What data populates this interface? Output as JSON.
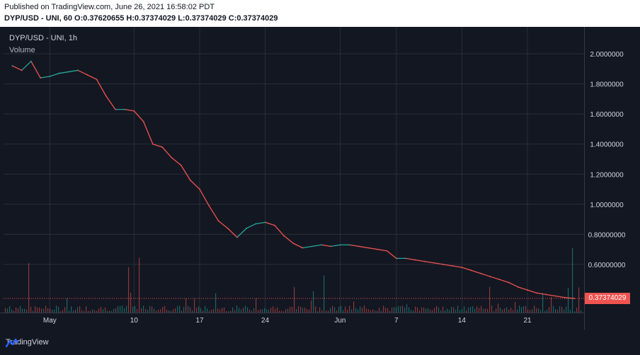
{
  "header": {
    "published": "Published on TradingView.com, June 26, 2021 16:58:02 PDT",
    "symbol_line": "DYP/USD - UNI, 60 O:0.37620655 H:0.37374029 L:0.37374029 C:0.37374029"
  },
  "legend": {
    "title": "DYP/USD - UNI, 1h",
    "volume": "Volume"
  },
  "current_price": "0.37374029",
  "brand": "TradingView",
  "colors": {
    "up": "#26a69a",
    "down": "#ef5350",
    "background": "#131722",
    "grid": "#2a2e39"
  },
  "chart_data": {
    "type": "line",
    "title": "DYP/USD - UNI, 1h",
    "xlabel": "",
    "ylabel": "",
    "x_ticks": [
      "May",
      "10",
      "17",
      "24",
      "Jun",
      "7",
      "14",
      "21"
    ],
    "y_ticks": [
      "2.0000000",
      "1.8000000",
      "1.6000000",
      "1.4000000",
      "1.2000000",
      "1.0000000",
      "0.80000000",
      "0.60000000"
    ],
    "ylim": [
      0.28,
      2.16
    ],
    "grid": true,
    "series": [
      {
        "x": [
          "Apr 27",
          "Apr 28",
          "Apr 29",
          "Apr 30",
          "May 1",
          "May 2",
          "May 3",
          "May 4",
          "May 5",
          "May 6",
          "May 7",
          "May 8",
          "May 9",
          "May 10",
          "May 11",
          "May 12",
          "May 13",
          "May 14",
          "May 15",
          "May 16",
          "May 17",
          "May 18",
          "May 19",
          "May 20",
          "May 21",
          "May 22",
          "May 23",
          "May 24",
          "May 25",
          "May 26",
          "May 27",
          "May 28",
          "May 29",
          "May 30",
          "May 31",
          "Jun 1",
          "Jun 2",
          "Jun 3",
          "Jun 4",
          "Jun 5",
          "Jun 6",
          "Jun 7",
          "Jun 8",
          "Jun 9",
          "Jun 10",
          "Jun 11",
          "Jun 12",
          "Jun 13",
          "Jun 14",
          "Jun 15",
          "Jun 16",
          "Jun 17",
          "Jun 18",
          "Jun 19",
          "Jun 20",
          "Jun 21",
          "Jun 22",
          "Jun 23",
          "Jun 24",
          "Jun 25",
          "Jun 26"
        ],
        "values": [
          1.92,
          1.89,
          1.95,
          1.84,
          1.85,
          1.87,
          1.88,
          1.89,
          1.86,
          1.83,
          1.72,
          1.63,
          1.63,
          1.62,
          1.55,
          1.4,
          1.38,
          1.31,
          1.26,
          1.16,
          1.1,
          0.99,
          0.89,
          0.84,
          0.78,
          0.84,
          0.87,
          0.88,
          0.86,
          0.79,
          0.74,
          0.71,
          0.72,
          0.73,
          0.72,
          0.73,
          0.73,
          0.72,
          0.71,
          0.7,
          0.69,
          0.64,
          0.64,
          0.63,
          0.62,
          0.61,
          0.6,
          0.59,
          0.58,
          0.56,
          0.54,
          0.52,
          0.5,
          0.48,
          0.45,
          0.43,
          0.41,
          0.4,
          0.39,
          0.38,
          0.37374029
        ]
      }
    ]
  }
}
